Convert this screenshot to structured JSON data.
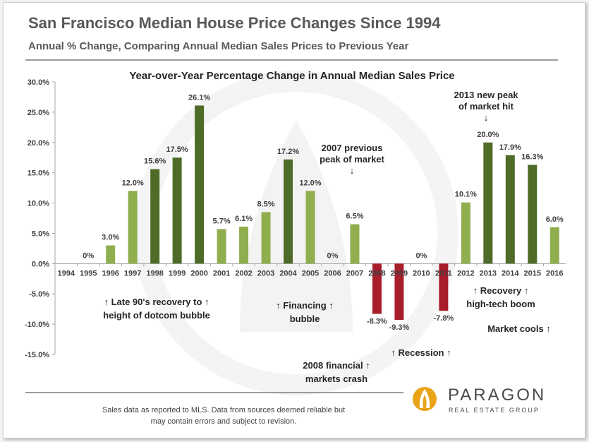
{
  "header": {
    "title": "San Francisco Median House Price Changes Since 1994",
    "subtitle": "Annual % Change, Comparing Annual Median Sales Prices to Previous Year"
  },
  "chart_data": {
    "type": "bar",
    "title": "Year-over-Year Percentage Change in Annual Median Sales Price",
    "categories": [
      "1994",
      "1995",
      "1996",
      "1997",
      "1998",
      "1999",
      "2000",
      "2001",
      "2002",
      "2003",
      "2004",
      "2005",
      "2006",
      "2007",
      "2008",
      "2009",
      "2010",
      "2011",
      "2012",
      "2013",
      "2014",
      "2015",
      "2016"
    ],
    "values": [
      null,
      0,
      3.0,
      12.0,
      15.6,
      17.5,
      26.1,
      5.7,
      6.1,
      8.5,
      17.2,
      12.0,
      0,
      6.5,
      -8.3,
      -9.3,
      0,
      -7.8,
      10.1,
      20.0,
      17.9,
      16.3,
      6.0
    ],
    "data_labels": [
      "",
      "0%",
      "3.0%",
      "12.0%",
      "15.6%",
      "17.5%",
      "26.1%",
      "5.7%",
      "6.1%",
      "8.5%",
      "17.2%",
      "12.0%",
      "0%",
      "6.5%",
      "-8.3%",
      "-9.3%",
      "0%",
      "-7.8%",
      "10.1%",
      "20.0%",
      "17.9%",
      "16.3%",
      "6.0%"
    ],
    "ylim": [
      -15,
      30
    ],
    "yticks": [
      30,
      25,
      20,
      15,
      10,
      5,
      0,
      -5,
      -10,
      -15
    ],
    "ytick_labels": [
      "30.0%",
      "25.0%",
      "20.0%",
      "15.0%",
      "10.0%",
      "5.0%",
      "0.0%",
      "-5.0%",
      "-10.0%",
      "-15.0%"
    ],
    "xlabel": "",
    "ylabel": "",
    "grid": false,
    "colors": {
      "dark_green": "#4f6b28",
      "light_green": "#8fae4d",
      "red": "#a81d2a"
    },
    "annotations": [
      {
        "lines": [
          "↑ Late 90's recovery to ↑",
          "height of dotcom bubble"
        ]
      },
      {
        "lines": [
          "↑ Financing ↑",
          "bubble"
        ]
      },
      {
        "lines": [
          "2007 previous",
          "peak of market",
          "↓"
        ]
      },
      {
        "lines": [
          "2013 new peak",
          "of market hit",
          "↓"
        ]
      },
      {
        "lines": [
          "↑ Recovery ↑",
          "high-tech boom"
        ]
      },
      {
        "lines": [
          "Market cools ↑"
        ]
      },
      {
        "lines": [
          "↑ Recession ↑"
        ]
      },
      {
        "lines": [
          "2008 financial ↑",
          "markets crash"
        ]
      }
    ]
  },
  "footer": {
    "line1": "Sales data as reported to MLS. Data from sources deemed reliable but",
    "line2": "may contain errors and subject to revision."
  },
  "logo": {
    "name": "PARAGON",
    "tagline": "REAL ESTATE GROUP",
    "color": "#e8a317"
  }
}
